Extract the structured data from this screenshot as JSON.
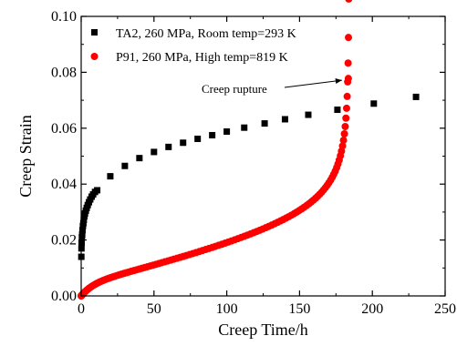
{
  "chart_data": {
    "type": "scatter",
    "xlabel": "Creep Time/h",
    "ylabel": "Creep Strain",
    "xlim": [
      0,
      250
    ],
    "ylim": [
      0,
      0.1
    ],
    "x_ticks": [
      "0",
      "50",
      "100",
      "150",
      "200",
      "250"
    ],
    "y_ticks": [
      "0.00",
      "0.02",
      "0.04",
      "0.06",
      "0.08",
      "0.10"
    ],
    "legend_position": "top-left",
    "grid": false,
    "series": [
      {
        "name": "TA2, 260 MPa, Room temp=293 K",
        "marker": "square",
        "color": "#000000",
        "points": [
          [
            0.1,
            0.014
          ],
          [
            0.2,
            0.017
          ],
          [
            0.3,
            0.019
          ],
          [
            0.5,
            0.021
          ],
          [
            0.7,
            0.022
          ],
          [
            0.9,
            0.0235
          ],
          [
            1.2,
            0.025
          ],
          [
            1.5,
            0.026
          ],
          [
            1.8,
            0.0272
          ],
          [
            2.2,
            0.0285
          ],
          [
            2.6,
            0.0295
          ],
          [
            3.2,
            0.0305
          ],
          [
            3.8,
            0.0315
          ],
          [
            4.5,
            0.0325
          ],
          [
            5.3,
            0.0335
          ],
          [
            6.2,
            0.0345
          ],
          [
            7.2,
            0.0355
          ],
          [
            8.2,
            0.0363
          ],
          [
            9.5,
            0.0372
          ],
          [
            11.0,
            0.0378
          ],
          [
            20,
            0.0428
          ],
          [
            30,
            0.0465
          ],
          [
            40,
            0.0493
          ],
          [
            50,
            0.0515
          ],
          [
            60,
            0.0533
          ],
          [
            70,
            0.0548
          ],
          [
            80,
            0.0562
          ],
          [
            90,
            0.0575
          ],
          [
            100,
            0.0588
          ],
          [
            112,
            0.0602
          ],
          [
            126,
            0.0617
          ],
          [
            140,
            0.0632
          ],
          [
            156,
            0.0648
          ],
          [
            176,
            0.0666
          ],
          [
            201,
            0.0688
          ],
          [
            230,
            0.0712
          ]
        ]
      },
      {
        "name": "P91, 260 MPa, High temp=819 K",
        "marker": "circle",
        "color": "#ff0000",
        "model": {
          "rupture_time": 184,
          "primary": [
            0.0042,
            0.12
          ],
          "secondary_rate": 0.000132,
          "tertiary": [
            0.0245,
            0.0245
          ]
        },
        "samples": 130
      }
    ],
    "annotations": [
      {
        "text": "Creep rupture",
        "arrow_to": [
          183.5,
          0.0778
        ]
      }
    ]
  }
}
